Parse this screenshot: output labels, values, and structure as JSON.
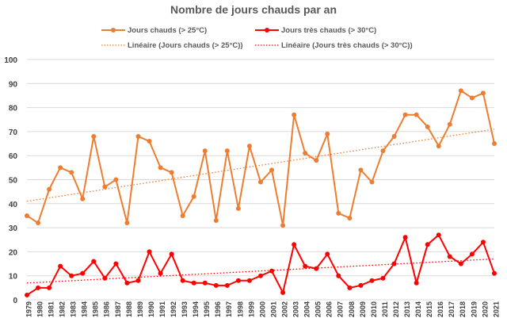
{
  "chart_data": {
    "type": "line",
    "title": "Nombre de jours chauds par an",
    "xlabel": "",
    "ylabel": "",
    "ylim": [
      0,
      100
    ],
    "y_ticks": [
      0,
      10,
      20,
      30,
      40,
      50,
      60,
      70,
      80,
      90,
      100
    ],
    "grid": true,
    "legend_position": "top",
    "categories": [
      "1979",
      "1980",
      "1981",
      "1982",
      "1983",
      "1984",
      "1985",
      "1986",
      "1987",
      "1988",
      "1989",
      "1990",
      "1991",
      "1992",
      "1993",
      "1994",
      "1995",
      "1996",
      "1997",
      "1998",
      "1999",
      "2000",
      "2001",
      "2002",
      "2003",
      "2004",
      "2005",
      "2006",
      "2007",
      "2008",
      "2009",
      "2010",
      "2011",
      "2012",
      "2013",
      "2014",
      "2015",
      "2016",
      "2017",
      "2018",
      "2019",
      "2020",
      "2021"
    ],
    "series": [
      {
        "name": "Jours chauds (> 25°C)",
        "color": "#ed7d31",
        "values": [
          35,
          32,
          46,
          55,
          53,
          42,
          68,
          47,
          50,
          32,
          68,
          66,
          55,
          53,
          35,
          43,
          62,
          33,
          62,
          38,
          64,
          49,
          54,
          31,
          77,
          61,
          58,
          69,
          36,
          34,
          54,
          49,
          62,
          68,
          77,
          77,
          72,
          64,
          73,
          87,
          84,
          86,
          65
        ]
      },
      {
        "name": "Jours très chauds (> 30°C)",
        "color": "#ff0000",
        "values": [
          2,
          5,
          5,
          14,
          10,
          11,
          16,
          9,
          15,
          7,
          8,
          20,
          11,
          19,
          8,
          7,
          7,
          6,
          6,
          8,
          8,
          10,
          12,
          3,
          23,
          14,
          13,
          19,
          10,
          5,
          6,
          8,
          9,
          15,
          26,
          7,
          23,
          27,
          18,
          15,
          19,
          24,
          11
        ]
      }
    ],
    "trendlines": [
      {
        "name": "Linéaire (Jours chauds (> 25°C))",
        "color": "#ed7d31",
        "start": 41,
        "end": 71
      },
      {
        "name": "Linéaire (Jours très chauds (> 30°C))",
        "color": "#ff0000",
        "start": 7,
        "end": 17
      }
    ]
  }
}
